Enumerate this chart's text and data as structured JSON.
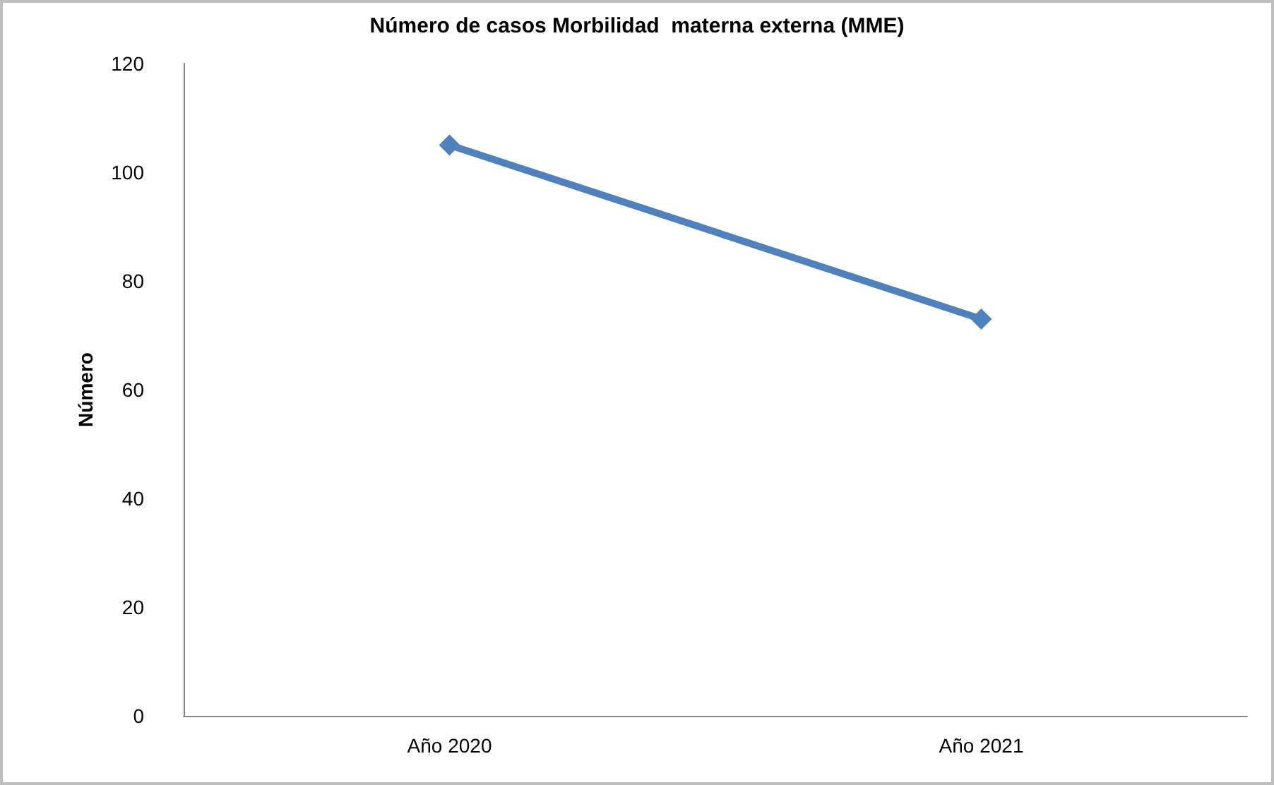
{
  "chart_data": {
    "type": "line",
    "title": "Número de casos Morbilidad  materna externa (MME)",
    "ylabel": "Número",
    "categories": [
      "Año 2020",
      "Año 2021"
    ],
    "series": [
      {
        "color": "#4f81bd",
        "values": [
          105,
          73
        ]
      }
    ],
    "ylim": [
      0,
      120
    ],
    "yticks": [
      0,
      20,
      40,
      60,
      80,
      100,
      120
    ],
    "grid": false,
    "marker": "diamond",
    "line_style": "solid"
  }
}
